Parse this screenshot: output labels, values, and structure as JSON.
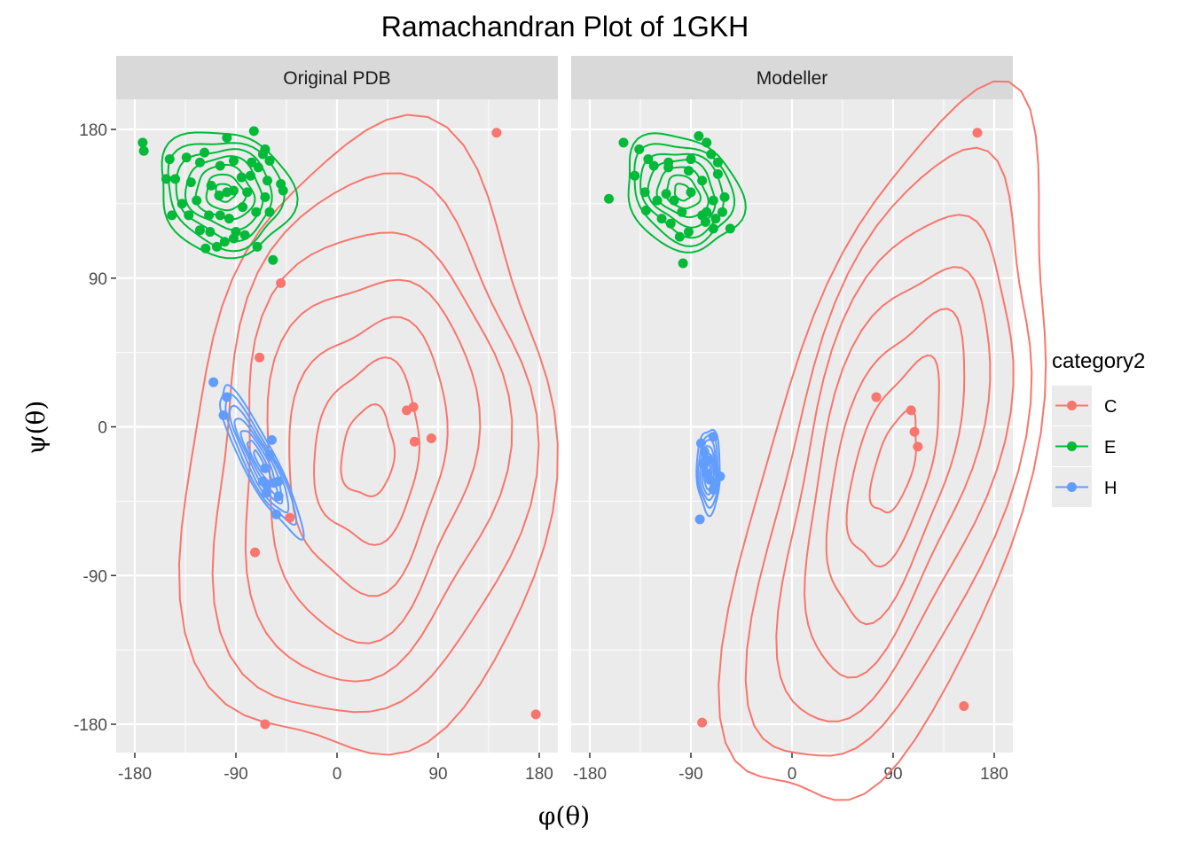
{
  "chart_data": {
    "type": "scatter",
    "title": "Ramachandran Plot of 1GKH",
    "xlabel": "φ(θ)",
    "ylabel": "ψ(θ)",
    "xlim": [
      -180,
      180
    ],
    "ylim": [
      -180,
      180
    ],
    "x_ticks": [
      -180,
      -90,
      0,
      90,
      180
    ],
    "y_ticks": [
      180,
      90,
      0,
      -90,
      -180
    ],
    "x_tick_labels": [
      "-180",
      "-90",
      "0",
      "90",
      "180"
    ],
    "y_tick_labels": [
      "180",
      "90",
      "0",
      "-90",
      "-180"
    ],
    "grid": true,
    "overlay": "2d density contours per category",
    "legend": {
      "title": "category2",
      "position": "right",
      "entries": [
        {
          "label": "C",
          "color": "#F8766D"
        },
        {
          "label": "E",
          "color": "#00BA38"
        },
        {
          "label": "H",
          "color": "#619CFF"
        }
      ]
    },
    "panels": [
      {
        "strip": "Original PDB",
        "series": [
          {
            "name": "C",
            "color": "#F8766D",
            "points": [
              [
                142,
                178
              ],
              [
                -50,
                87
              ],
              [
                -69,
                42
              ],
              [
                68,
                12
              ],
              [
                62,
                10
              ],
              [
                69,
                -9
              ],
              [
                84,
                -7
              ],
              [
                -42,
                -55
              ],
              [
                -73,
                -76
              ],
              [
                -64,
                -180
              ],
              [
                177,
                -174
              ]
            ]
          },
          {
            "name": "E",
            "color": "#00BA38",
            "points": [
              [
                -173,
                172
              ],
              [
                -172,
                167
              ],
              [
                -149,
                162
              ],
              [
                -134,
                163
              ],
              [
                -118,
                166
              ],
              [
                -98,
                175
              ],
              [
                -74,
                179
              ],
              [
                -64,
                168
              ],
              [
                -76,
                160
              ],
              [
                -92,
                161
              ],
              [
                -104,
                158
              ],
              [
                -122,
                160
              ],
              [
                -144,
                150
              ],
              [
                -152,
                150
              ],
              [
                -130,
                148
              ],
              [
                -112,
                146
              ],
              [
                -85,
                151
              ],
              [
                -77,
                152
              ],
              [
                -62,
                149
              ],
              [
                -70,
                157
              ],
              [
                -60,
                161
              ],
              [
                -66,
                165
              ],
              [
                -50,
                147
              ],
              [
                -80,
                142
              ],
              [
                -92,
                143
              ],
              [
                -105,
                140
              ],
              [
                -125,
                137
              ],
              [
                -138,
                135
              ],
              [
                -147,
                128
              ],
              [
                -132,
                128
              ],
              [
                -114,
                128
              ],
              [
                -104,
                128
              ],
              [
                -84,
                133
              ],
              [
                -72,
                130
              ],
              [
                -60,
                130
              ],
              [
                -48,
                143
              ],
              [
                -64,
                139
              ],
              [
                -96,
                126
              ],
              [
                -113,
                118
              ],
              [
                -122,
                119
              ],
              [
                -90,
                118
              ],
              [
                -107,
                109
              ],
              [
                -100,
                112
              ],
              [
                -82,
                116
              ],
              [
                -71,
                109
              ],
              [
                -57,
                101
              ],
              [
                -92,
                114
              ],
              [
                -117,
                108
              ],
              [
                -98,
                142
              ]
            ]
          },
          {
            "name": "H",
            "color": "#619CFF",
            "points": [
              [
                -110,
                27
              ],
              [
                -98,
                18
              ],
              [
                -101,
                7
              ],
              [
                -58,
                -8
              ],
              [
                -60,
                -17
              ],
              [
                -64,
                -25
              ],
              [
                -62,
                -35
              ],
              [
                -56,
                -34
              ],
              [
                -63,
                -40
              ],
              [
                -52,
                -42
              ],
              [
                -54,
                -53
              ],
              [
                -52,
                -33
              ],
              [
                -66,
                -33
              ]
            ]
          }
        ]
      },
      {
        "strip": "Modeller",
        "series": [
          {
            "name": "C",
            "color": "#F8766D",
            "points": [
              [
                165,
                178
              ],
              [
                -80,
                -179
              ],
              [
                75,
                18
              ],
              [
                106,
                10
              ],
              [
                109,
                -3
              ],
              [
                112,
                -12
              ],
              [
                153,
                -169
              ]
            ]
          },
          {
            "name": "E",
            "color": "#00BA38",
            "points": [
              [
                -150,
                172
              ],
              [
                -136,
                168
              ],
              [
                -83,
                176
              ],
              [
                -76,
                172
              ],
              [
                -128,
                162
              ],
              [
                -110,
                160
              ],
              [
                -90,
                162
              ],
              [
                -72,
                165
              ],
              [
                -66,
                160
              ],
              [
                -140,
                152
              ],
              [
                -123,
                158
              ],
              [
                -110,
                157
              ],
              [
                -92,
                155
              ],
              [
                -80,
                149
              ],
              [
                -66,
                153
              ],
              [
                -131,
                142
              ],
              [
                -112,
                141
              ],
              [
                -120,
                137
              ],
              [
                -105,
                137
              ],
              [
                -90,
                142
              ],
              [
                -70,
                137
              ],
              [
                -60,
                139
              ],
              [
                -130,
                131
              ],
              [
                -116,
                126
              ],
              [
                -98,
                130
              ],
              [
                -80,
                128
              ],
              [
                -68,
                126
              ],
              [
                -62,
                130
              ],
              [
                -108,
                123
              ],
              [
                -92,
                118
              ],
              [
                -100,
                115
              ],
              [
                -70,
                120
              ],
              [
                -76,
                130
              ],
              [
                -55,
                120
              ],
              [
                -163,
                138
              ],
              [
                -97,
                99
              ],
              [
                -77,
                124
              ]
            ]
          },
          {
            "name": "H",
            "color": "#619CFF",
            "points": [
              [
                -70,
                -6
              ],
              [
                -81,
                -10
              ],
              [
                -78,
                -15
              ],
              [
                -79,
                -22
              ],
              [
                -76,
                -28
              ],
              [
                -73,
                -32
              ],
              [
                -68,
                -34
              ],
              [
                -64,
                -30
              ],
              [
                -70,
                -38
              ],
              [
                -75,
                -20
              ],
              [
                -82,
                -56
              ]
            ]
          }
        ]
      }
    ]
  }
}
